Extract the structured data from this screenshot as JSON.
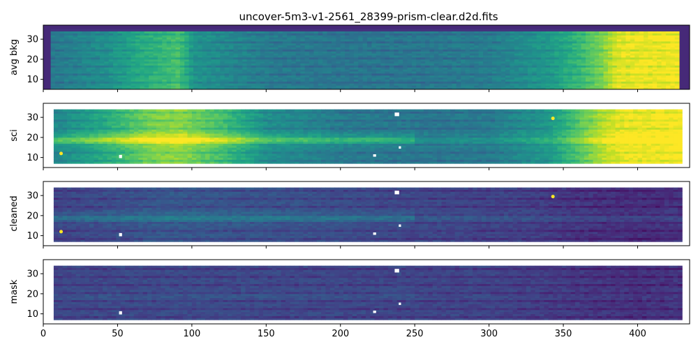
{
  "chart_data": {
    "type": "heatmap",
    "title": "uncover-5m3-v1-2561_28399-prism-clear.d2d.fits",
    "colormap": "viridis",
    "xlim": [
      0,
      435
    ],
    "ylim": [
      5,
      37
    ],
    "xticks": [
      0,
      50,
      100,
      150,
      200,
      250,
      300,
      350,
      400
    ],
    "yticks": [
      10,
      20,
      30
    ],
    "shared_x": true,
    "panels": [
      {
        "name": "avg-bkg",
        "ylabel": "avg bkg",
        "rows": [
          5,
          35
        ],
        "x_range": [
          5,
          428
        ],
        "profile": [
          [
            0,
            0.4
          ],
          [
            40,
            0.5
          ],
          [
            60,
            0.6
          ],
          [
            80,
            0.68
          ],
          [
            90,
            0.72
          ],
          [
            100,
            0.52
          ],
          [
            150,
            0.42
          ],
          [
            200,
            0.4
          ],
          [
            250,
            0.4
          ],
          [
            300,
            0.43
          ],
          [
            340,
            0.55
          ],
          [
            360,
            0.68
          ],
          [
            375,
            0.82
          ],
          [
            385,
            0.97
          ],
          [
            428,
            1.0
          ]
        ],
        "fill_notches": true
      },
      {
        "name": "sci",
        "ylabel": "sci",
        "rows": [
          7,
          34
        ],
        "x_range": [
          7,
          428
        ],
        "profile": [
          [
            0,
            0.45
          ],
          [
            40,
            0.62
          ],
          [
            70,
            0.8
          ],
          [
            90,
            0.84
          ],
          [
            120,
            0.7
          ],
          [
            150,
            0.5
          ],
          [
            200,
            0.42
          ],
          [
            250,
            0.4
          ],
          [
            300,
            0.42
          ],
          [
            340,
            0.55
          ],
          [
            360,
            0.75
          ],
          [
            375,
            0.9
          ],
          [
            390,
            0.98
          ],
          [
            428,
            1.0
          ]
        ],
        "trace_row": 19,
        "trace_strength": 0.25,
        "hot_pixels": [
          [
            12,
            12
          ],
          [
            343,
            29.5
          ]
        ],
        "holes": [
          [
            52,
            10.5,
            2,
            1.6
          ],
          [
            223,
            11,
            2,
            1.2
          ],
          [
            238,
            31.5,
            3,
            1.8
          ],
          [
            240,
            15,
            1.5,
            1.2
          ]
        ]
      },
      {
        "name": "cleaned",
        "ylabel": "cleaned",
        "rows": [
          7,
          34
        ],
        "x_range": [
          7,
          428
        ],
        "profile": [
          [
            0,
            0.2
          ],
          [
            40,
            0.24
          ],
          [
            80,
            0.28
          ],
          [
            150,
            0.26
          ],
          [
            250,
            0.22
          ],
          [
            320,
            0.2
          ],
          [
            360,
            0.16
          ],
          [
            400,
            0.14
          ],
          [
            428,
            0.15
          ]
        ],
        "trace_row": 19,
        "trace_strength": 0.15,
        "hot_pixels": [
          [
            12,
            12
          ],
          [
            343,
            29.5
          ]
        ],
        "holes": [
          [
            52,
            10.5,
            2,
            1.6
          ],
          [
            223,
            11,
            2,
            1.2
          ],
          [
            238,
            31.5,
            3,
            1.8
          ],
          [
            240,
            15,
            1.5,
            1.2
          ]
        ]
      },
      {
        "name": "mask",
        "ylabel": "mask",
        "rows": [
          7,
          34
        ],
        "x_range": [
          7,
          428
        ],
        "profile": [
          [
            0,
            0.22
          ],
          [
            100,
            0.23
          ],
          [
            200,
            0.22
          ],
          [
            300,
            0.21
          ],
          [
            360,
            0.17
          ],
          [
            400,
            0.15
          ],
          [
            428,
            0.16
          ]
        ],
        "trace_row": 19,
        "trace_strength": 0.03,
        "hot_pixels": [],
        "holes": [
          [
            52,
            10.5,
            2,
            1.6
          ],
          [
            223,
            11,
            2,
            1.2
          ],
          [
            238,
            31.5,
            3,
            1.8
          ],
          [
            240,
            15,
            1.5,
            1.2
          ]
        ]
      }
    ]
  }
}
